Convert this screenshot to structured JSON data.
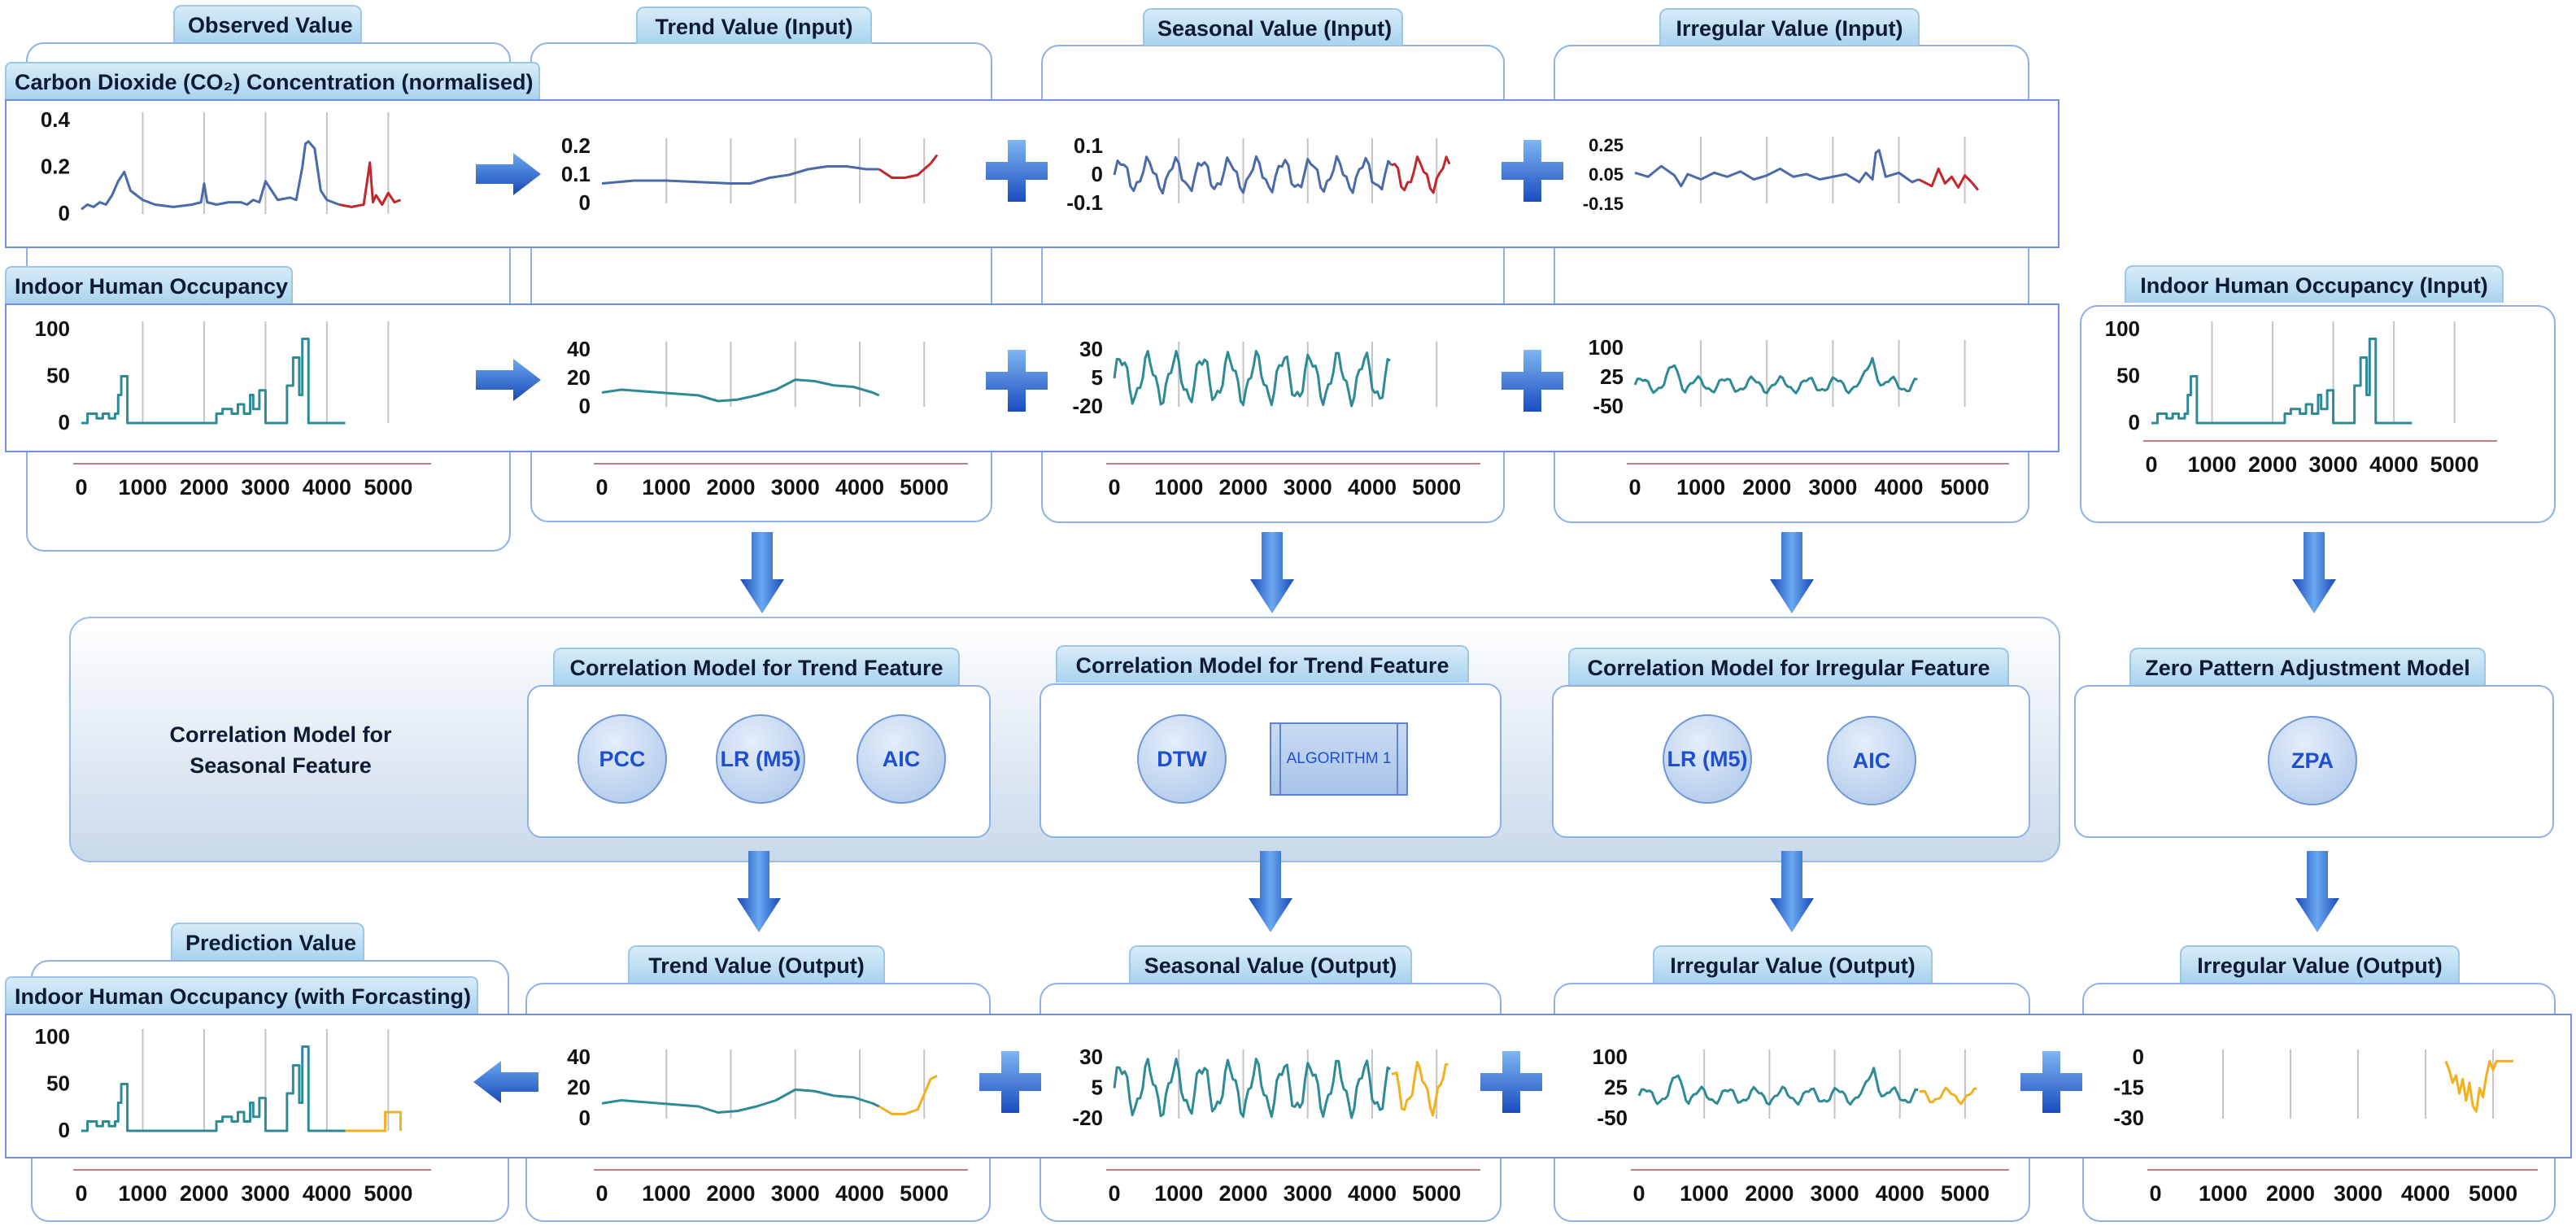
{
  "colors": {
    "observed": "#4a6aaa",
    "predicted": "#c0282c",
    "occupancy": "#2e8b96",
    "forecast": "#f2b01e",
    "grid": "#c8c8c8",
    "arrow": "#1f5fd0",
    "tab": "#b7dcf2"
  },
  "headers": {
    "observed": "Observed Value",
    "trend_in": "Trend Value (Input)",
    "seasonal_in": "Seasonal Value (Input)",
    "irregular_in": "Irregular Value (Input)",
    "occupancy_in": "Indoor Human Occupancy (Input)",
    "prediction": "Prediction Value",
    "trend_out": "Trend Value (Output)",
    "seasonal_out": "Seasonal Value (Output)",
    "irregular_out": "Irregular Value (Output)",
    "irregular_out2": "Irregular Value (Output)"
  },
  "rows": {
    "co2": "Carbon Dioxide (CO₂) Concentration (normalised)",
    "occupancy": "Indoor Human Occupancy",
    "forecast": "Indoor Human Occupancy (with Forcasting)"
  },
  "models": {
    "seasonal_label": "Correlation Model for Seasonal Feature",
    "trend": {
      "title": "Correlation Model for Trend Feature",
      "items": [
        "PCC",
        "LR (M5)",
        "AIC"
      ]
    },
    "trend2": {
      "title": "Correlation Model for Trend Feature",
      "items": [
        "DTW"
      ],
      "algorithm": "ALGORITHM 1"
    },
    "irregular": {
      "title": "Correlation Model for Irregular Feature",
      "items": [
        "LR (M5)",
        "AIC"
      ]
    },
    "zero": {
      "title": "Zero Pattern Adjustment Model",
      "items": [
        "ZPA"
      ]
    }
  },
  "icons": [
    "arrow-right-icon",
    "plus-icon",
    "arrow-down-icon",
    "arrow-left-icon"
  ],
  "chart_data": [
    {
      "id": "co2-observed",
      "type": "line",
      "y_ticks": [
        "0.4",
        "0.2",
        "0"
      ],
      "ylim": [
        0,
        0.4
      ],
      "xlim": [
        0,
        5300
      ],
      "series": [
        {
          "color": "observed",
          "x": [
            0,
            100,
            200,
            300,
            400,
            500,
            600,
            700,
            800,
            1000,
            1200,
            1500,
            1800,
            1950,
            2000,
            2050,
            2200,
            2400,
            2600,
            2700,
            2800,
            2900,
            3000,
            3200,
            3400,
            3500,
            3600,
            3650,
            3700,
            3800,
            3900,
            4000,
            4100,
            4200
          ],
          "y": [
            0.02,
            0.04,
            0.03,
            0.05,
            0.04,
            0.08,
            0.14,
            0.18,
            0.1,
            0.06,
            0.04,
            0.03,
            0.04,
            0.05,
            0.13,
            0.05,
            0.04,
            0.05,
            0.05,
            0.04,
            0.06,
            0.05,
            0.14,
            0.06,
            0.07,
            0.06,
            0.2,
            0.3,
            0.31,
            0.28,
            0.1,
            0.06,
            0.05,
            0.04
          ]
        },
        {
          "color": "predicted",
          "x": [
            4200,
            4400,
            4600,
            4700,
            4750,
            4800,
            4900,
            5000,
            5100,
            5200
          ],
          "y": [
            0.04,
            0.03,
            0.04,
            0.22,
            0.05,
            0.08,
            0.04,
            0.09,
            0.05,
            0.06
          ]
        }
      ]
    },
    {
      "id": "co2-trend",
      "type": "line",
      "y_ticks": [
        "0.2",
        "0.1",
        "0"
      ],
      "ylim": [
        0,
        0.2
      ],
      "xlim": [
        0,
        5300
      ],
      "series": [
        {
          "color": "observed",
          "x": [
            0,
            500,
            1000,
            1500,
            2000,
            2300,
            2600,
            2900,
            3200,
            3500,
            3800,
            4100,
            4300
          ],
          "y": [
            0.07,
            0.08,
            0.08,
            0.075,
            0.07,
            0.07,
            0.09,
            0.1,
            0.12,
            0.13,
            0.13,
            0.12,
            0.12
          ]
        },
        {
          "color": "predicted",
          "x": [
            4300,
            4500,
            4700,
            4900,
            5100,
            5200
          ],
          "y": [
            0.12,
            0.09,
            0.09,
            0.1,
            0.14,
            0.17
          ]
        }
      ]
    },
    {
      "id": "co2-seasonal",
      "type": "line",
      "y_ticks": [
        "0.1",
        "0",
        "-0.1"
      ],
      "ylim": [
        -0.12,
        0.12
      ],
      "xlim": [
        0,
        5300
      ],
      "series": [
        {
          "color": "observed",
          "wave": {
            "from": 0,
            "to": 4300,
            "step": 50,
            "amp": 0.06,
            "period": 420,
            "base": 0
          }
        },
        {
          "color": "predicted",
          "wave": {
            "from": 4300,
            "to": 5200,
            "step": 50,
            "amp": 0.06,
            "period": 420,
            "base": 0
          }
        }
      ]
    },
    {
      "id": "co2-irregular",
      "type": "line",
      "y_ticks": [
        "0.25",
        "0.05",
        "-0.15"
      ],
      "ylim": [
        -0.18,
        0.26
      ],
      "xlim": [
        0,
        5300
      ],
      "series": [
        {
          "color": "observed",
          "x": [
            0,
            200,
            400,
            600,
            700,
            800,
            1000,
            1200,
            1400,
            1600,
            1800,
            2000,
            2200,
            2400,
            2600,
            2800,
            3000,
            3200,
            3400,
            3500,
            3600,
            3650,
            3700,
            3800,
            4000,
            4200,
            4300
          ],
          "y": [
            0.05,
            0.02,
            0.1,
            0.03,
            -0.05,
            0.04,
            0.0,
            0.05,
            0.02,
            0.06,
            0.0,
            0.03,
            0.08,
            0.02,
            0.04,
            0.0,
            0.02,
            0.04,
            -0.02,
            0.05,
            0.0,
            0.2,
            0.22,
            0.02,
            0.05,
            -0.02,
            0.0
          ]
        },
        {
          "color": "predicted",
          "x": [
            4300,
            4500,
            4600,
            4700,
            4800,
            4900,
            5000,
            5100,
            5200
          ],
          "y": [
            0.0,
            -0.05,
            0.08,
            -0.03,
            0.02,
            -0.06,
            0.03,
            -0.02,
            -0.08
          ]
        }
      ]
    },
    {
      "id": "occ-observed",
      "type": "line",
      "y_ticks": [
        "100",
        "50",
        "0"
      ],
      "ylim": [
        0,
        100
      ],
      "xlim": [
        0,
        5300
      ],
      "series": [
        {
          "color": "occupancy",
          "step": true,
          "x": [
            0,
            100,
            250,
            350,
            450,
            550,
            600,
            650,
            700,
            750,
            800,
            2100,
            2200,
            2300,
            2450,
            2550,
            2650,
            2750,
            2800,
            2900,
            3000,
            3100,
            3350,
            3450,
            3550,
            3600,
            3650,
            3700,
            3800,
            3900,
            4000,
            4100,
            4300
          ],
          "y": [
            0,
            10,
            5,
            10,
            5,
            10,
            30,
            50,
            50,
            0,
            0,
            0,
            10,
            15,
            10,
            20,
            10,
            30,
            15,
            35,
            0,
            0,
            40,
            70,
            30,
            90,
            90,
            0,
            0,
            0,
            0,
            0,
            0
          ]
        }
      ]
    },
    {
      "id": "occ-trend",
      "type": "line",
      "y_ticks": [
        "40",
        "20",
        "0"
      ],
      "ylim": [
        0,
        40
      ],
      "xlim": [
        0,
        5300
      ],
      "series": [
        {
          "color": "occupancy",
          "x": [
            0,
            300,
            600,
            900,
            1200,
            1500,
            1800,
            2100,
            2400,
            2700,
            3000,
            3300,
            3600,
            3900,
            4200,
            4300
          ],
          "y": [
            10,
            12,
            11,
            10,
            9,
            8,
            4,
            5,
            8,
            12,
            19,
            18,
            15,
            14,
            10,
            8
          ]
        }
      ]
    },
    {
      "id": "occ-seasonal",
      "type": "line",
      "y_ticks": [
        "30",
        "5",
        "-20"
      ],
      "ylim": [
        -22,
        32
      ],
      "xlim": [
        0,
        5300
      ],
      "series": [
        {
          "color": "occupancy",
          "wave": {
            "from": 0,
            "to": 4300,
            "step": 40,
            "amp": 20,
            "period": 420,
            "base": 5
          }
        }
      ]
    },
    {
      "id": "occ-irregular",
      "type": "line",
      "y_ticks": [
        "100",
        "25",
        "-50"
      ],
      "ylim": [
        -55,
        105
      ],
      "xlim": [
        0,
        5300
      ],
      "series": [
        {
          "color": "occupancy",
          "wave": {
            "from": 0,
            "to": 4300,
            "step": 40,
            "amp": 18,
            "period": 420,
            "base": 5,
            "spikes": [
              [
                600,
                50
              ],
              [
                3600,
                75
              ]
            ]
          }
        }
      ]
    },
    {
      "id": "occ-input",
      "type": "line",
      "y_ticks": [
        "100",
        "50",
        "0"
      ],
      "ylim": [
        0,
        100
      ],
      "xlim": [
        0,
        5300
      ],
      "series": [
        {
          "color": "occupancy",
          "step": true,
          "x": [
            0,
            100,
            250,
            350,
            450,
            550,
            600,
            650,
            700,
            750,
            800,
            2100,
            2200,
            2300,
            2450,
            2550,
            2650,
            2750,
            2800,
            2900,
            3000,
            3100,
            3350,
            3450,
            3550,
            3600,
            3650,
            3700,
            3800,
            3900,
            4000,
            4100,
            4300
          ],
          "y": [
            0,
            10,
            5,
            10,
            5,
            10,
            30,
            50,
            50,
            0,
            0,
            0,
            10,
            15,
            10,
            20,
            10,
            30,
            15,
            35,
            0,
            0,
            40,
            70,
            30,
            90,
            90,
            0,
            0,
            0,
            0,
            0,
            0
          ]
        }
      ]
    },
    {
      "id": "occ-forecast",
      "type": "line",
      "y_ticks": [
        "100",
        "50",
        "0"
      ],
      "ylim": [
        0,
        100
      ],
      "xlim": [
        0,
        5300
      ],
      "series": [
        {
          "color": "occupancy",
          "step": true,
          "x": [
            0,
            100,
            250,
            350,
            450,
            550,
            600,
            650,
            700,
            750,
            800,
            2100,
            2200,
            2300,
            2450,
            2550,
            2650,
            2750,
            2800,
            2900,
            3000,
            3100,
            3350,
            3450,
            3550,
            3600,
            3650,
            3700,
            3800,
            3900,
            4000,
            4100,
            4300
          ],
          "y": [
            0,
            10,
            5,
            10,
            5,
            10,
            30,
            50,
            50,
            0,
            0,
            0,
            10,
            15,
            10,
            20,
            10,
            30,
            15,
            35,
            0,
            0,
            40,
            70,
            30,
            90,
            90,
            0,
            0,
            0,
            0,
            0,
            0
          ]
        },
        {
          "color": "forecast",
          "step": true,
          "x": [
            4300,
            4700,
            4950,
            5050,
            5200
          ],
          "y": [
            0,
            0,
            20,
            20,
            0
          ]
        }
      ]
    },
    {
      "id": "trend-out",
      "type": "line",
      "y_ticks": [
        "40",
        "20",
        "0"
      ],
      "ylim": [
        0,
        40
      ],
      "xlim": [
        0,
        5300
      ],
      "series": [
        {
          "color": "occupancy",
          "x": [
            0,
            300,
            600,
            900,
            1200,
            1500,
            1800,
            2100,
            2400,
            2700,
            3000,
            3300,
            3600,
            3900,
            4200,
            4300
          ],
          "y": [
            10,
            12,
            11,
            10,
            9,
            8,
            4,
            5,
            8,
            12,
            19,
            18,
            15,
            14,
            10,
            8
          ]
        },
        {
          "color": "forecast",
          "x": [
            4300,
            4500,
            4700,
            4900,
            5000,
            5100,
            5200
          ],
          "y": [
            8,
            3,
            3,
            6,
            16,
            26,
            28
          ]
        }
      ]
    },
    {
      "id": "seasonal-out",
      "type": "line",
      "y_ticks": [
        "30",
        "5",
        "-20"
      ],
      "ylim": [
        -22,
        32
      ],
      "xlim": [
        0,
        5300
      ],
      "series": [
        {
          "color": "occupancy",
          "wave": {
            "from": 0,
            "to": 4300,
            "step": 40,
            "amp": 20,
            "period": 420,
            "base": 5
          }
        },
        {
          "color": "forecast",
          "wave": {
            "from": 4300,
            "to": 5200,
            "step": 40,
            "amp": 18,
            "period": 420,
            "base": 5
          }
        }
      ]
    },
    {
      "id": "irregular-out",
      "type": "line",
      "y_ticks": [
        "100",
        "25",
        "-50"
      ],
      "ylim": [
        -55,
        105
      ],
      "xlim": [
        0,
        5300
      ],
      "series": [
        {
          "color": "occupancy",
          "wave": {
            "from": 0,
            "to": 4300,
            "step": 40,
            "amp": 18,
            "period": 420,
            "base": 5,
            "spikes": [
              [
                600,
                50
              ],
              [
                3600,
                75
              ]
            ]
          }
        },
        {
          "color": "forecast",
          "wave": {
            "from": 4300,
            "to": 5200,
            "step": 40,
            "amp": 16,
            "period": 420,
            "base": 5
          }
        }
      ]
    },
    {
      "id": "zpa-out",
      "type": "line",
      "y_ticks": [
        "0",
        "-15",
        "-30"
      ],
      "ylim": [
        -32,
        2
      ],
      "xlim": [
        0,
        5300
      ],
      "series": [
        {
          "color": "forecast",
          "x": [
            4300,
            4350,
            4400,
            4450,
            4500,
            4550,
            4600,
            4650,
            4700,
            4750,
            4800,
            4850,
            4900,
            4950,
            5000,
            5050,
            5100,
            5200,
            5300
          ],
          "y": [
            0,
            -5,
            -12,
            -8,
            -18,
            -10,
            -22,
            -12,
            -25,
            -28,
            -15,
            -20,
            -8,
            0,
            -5,
            0,
            0,
            0,
            0
          ]
        }
      ]
    }
  ],
  "x_ticks": [
    "0",
    "1000",
    "2000",
    "3000",
    "4000",
    "5000"
  ]
}
